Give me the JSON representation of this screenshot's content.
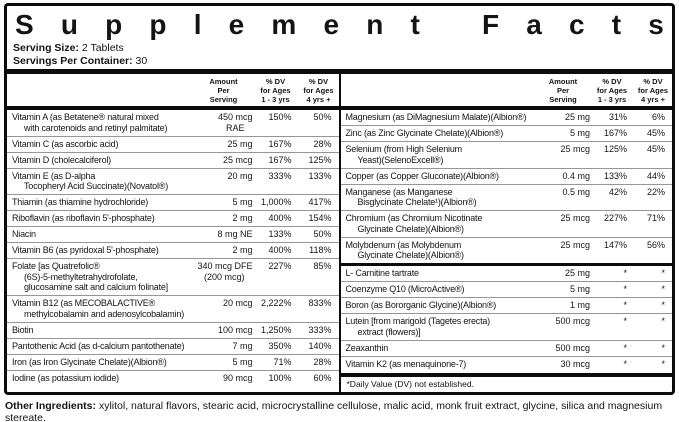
{
  "title": "Supplement Facts",
  "serving_size_label": "Serving Size:",
  "serving_size_value": "2 Tablets",
  "servings_label": "Servings Per Container:",
  "servings_value": "30",
  "column_headers": {
    "amount": [
      "Amount",
      "Per",
      "Serving"
    ],
    "dv_1_3": [
      "% DV",
      "for Ages",
      "1 - 3 yrs"
    ],
    "dv_4plus": [
      "% DV",
      "for Ages",
      "4 yrs +"
    ]
  },
  "left_rows": [
    {
      "name": [
        "Vitamin A (as Betatene® natural mixed",
        "with carotenoids and retinyl palmitate)"
      ],
      "amount": [
        "450 mcg",
        "RAE"
      ],
      "dv1": "150%",
      "dv4": "50%"
    },
    {
      "name": [
        "Vitamin C (as ascorbic acid)"
      ],
      "amount": [
        "25 mg"
      ],
      "dv1": "167%",
      "dv4": "28%"
    },
    {
      "name": [
        "Vitamin D (cholecalciferol)"
      ],
      "amount": [
        "25 mcg"
      ],
      "dv1": "167%",
      "dv4": "125%"
    },
    {
      "name": [
        "Vitamin E (as D-alpha",
        "Tocopheryl Acid Succinate)(Novatol®)"
      ],
      "amount": [
        "20 mg"
      ],
      "dv1": "333%",
      "dv4": "133%"
    },
    {
      "name": [
        "Thiamin (as thiamine hydrochloride)"
      ],
      "amount": [
        "5 mg"
      ],
      "dv1": "1,000%",
      "dv4": "417%"
    },
    {
      "name": [
        "Riboflavin (as riboflavin 5'-phosphate)"
      ],
      "amount": [
        "2 mg"
      ],
      "dv1": "400%",
      "dv4": "154%"
    },
    {
      "name": [
        "Niacin"
      ],
      "amount": [
        "8 mg NE"
      ],
      "dv1": "133%",
      "dv4": "50%"
    },
    {
      "name": [
        "Vitamin B6 (as pyridoxal 5'-phosphate)"
      ],
      "amount": [
        "2 mg"
      ],
      "dv1": "400%",
      "dv4": "118%"
    },
    {
      "name": [
        "Folate [as Quatrefolic®",
        "(6S)-5-methyltetrahydrofolate,",
        "glucosamine salt and calcium folinate]"
      ],
      "amount": [
        "340 mcg DFE",
        "(200 mcg)"
      ],
      "dv1": "227%",
      "dv4": "85%"
    },
    {
      "name": [
        "Vitamin B12 (as MECOBALACTIVE®",
        "methylcobalamin and adenosylcobalamin)"
      ],
      "amount": [
        "20 mcg"
      ],
      "dv1": "2,222%",
      "dv4": "833%"
    },
    {
      "name": [
        "Biotin"
      ],
      "amount": [
        "100 mcg"
      ],
      "dv1": "1,250%",
      "dv4": "333%"
    },
    {
      "name": [
        "Pantothenic Acid (as d-calcium pantothenate)"
      ],
      "amount": [
        "7 mg"
      ],
      "dv1": "350%",
      "dv4": "140%"
    },
    {
      "name": [
        "Iron (as Iron Glycinate Chelate)(Albion®)"
      ],
      "amount": [
        "5 mg"
      ],
      "dv1": "71%",
      "dv4": "28%"
    },
    {
      "name": [
        "Iodine (as potassium iodide)"
      ],
      "amount": [
        "90 mcg"
      ],
      "dv1": "100%",
      "dv4": "60%"
    }
  ],
  "right_rows_dv": [
    {
      "name": [
        "Magnesium (as DiMagnesium Malate)(Albion®)"
      ],
      "amount": [
        "25 mg"
      ],
      "dv1": "31%",
      "dv4": "6%"
    },
    {
      "name": [
        "Zinc (as Zinc Glycinate Chelate)(Albion®)"
      ],
      "amount": [
        "5 mg"
      ],
      "dv1": "167%",
      "dv4": "45%"
    },
    {
      "name": [
        "Selenium (from High Selenium",
        "Yeast)(SelenoExcell®)"
      ],
      "amount": [
        "25 mcg"
      ],
      "dv1": "125%",
      "dv4": "45%"
    },
    {
      "name": [
        "Copper (as Copper Gluconate)(Albion®)"
      ],
      "amount": [
        "0.4 mg"
      ],
      "dv1": "133%",
      "dv4": "44%"
    },
    {
      "name": [
        "Manganese (as Manganese",
        "Bisglycinate Chelate¹)(Albion®)"
      ],
      "amount": [
        "0.5 mg"
      ],
      "dv1": "42%",
      "dv4": "22%"
    },
    {
      "name": [
        "Chromium (as Chromium Nicotinate",
        "Glycinate Chelate)(Albion®)"
      ],
      "amount": [
        "25 mcg"
      ],
      "dv1": "227%",
      "dv4": "71%"
    },
    {
      "name": [
        "Molybdenum (as Molybdenum",
        "Glycinate Chelate)(Albion®)"
      ],
      "amount": [
        "25 mcg"
      ],
      "dv1": "147%",
      "dv4": "56%"
    }
  ],
  "right_rows_nodv": [
    {
      "name": [
        "L- Carnitine tartrate"
      ],
      "amount": [
        "25 mg"
      ],
      "dv1": "*",
      "dv4": "*"
    },
    {
      "name": [
        "Coenzyme Q10 (MicroActive®)"
      ],
      "amount": [
        "5 mg"
      ],
      "dv1": "*",
      "dv4": "*"
    },
    {
      "name": [
        "Boron (as Bororganic Glycine)(Albion®)"
      ],
      "amount": [
        "1 mg"
      ],
      "dv1": "*",
      "dv4": "*"
    },
    {
      "name": [
        "Lutein [from marigold (Tagetes erecta)",
        "extract (flowers)]"
      ],
      "amount": [
        "500 mcg"
      ],
      "dv1": "*",
      "dv4": "*"
    },
    {
      "name": [
        "Zeaxanthin"
      ],
      "amount": [
        "500 mcg"
      ],
      "dv1": "*",
      "dv4": "*"
    },
    {
      "name": [
        "Vitamin K2 (as menaquinone-7)"
      ],
      "amount": [
        "30 mcg"
      ],
      "dv1": "*",
      "dv4": "*"
    }
  ],
  "footnote": "*Daily Value (DV) not established.",
  "other_ingredients_label": "Other Ingredients:",
  "other_ingredients_text": "xylitol, natural flavors, stearic acid, microcrystalline cellulose, malic acid, monk fruit extract, glycine, silica and magnesium stereate."
}
